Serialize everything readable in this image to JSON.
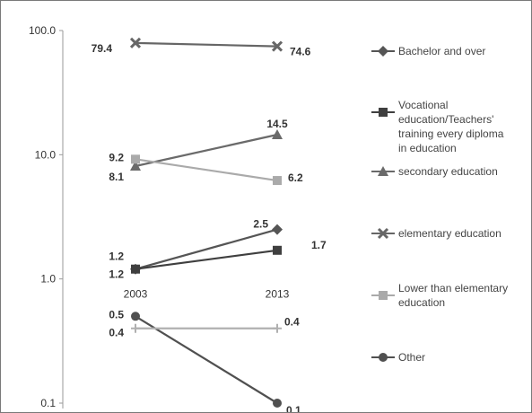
{
  "chart_data": {
    "type": "line",
    "title": "",
    "xlabel": "",
    "ylabel": "",
    "y_scale": "log",
    "ylim": [
      0.1,
      100
    ],
    "y_ticks": [
      "0.1",
      "1.0",
      "10.0",
      "100.0"
    ],
    "x_categories": [
      "2003",
      "2013"
    ],
    "legend_position": "right",
    "grid": false,
    "series": [
      {
        "name": "Bachelor and over",
        "marker": "diamond",
        "color": "#555555",
        "values": [
          1.2,
          2.5
        ],
        "labels": [
          "1.2",
          "2.5"
        ]
      },
      {
        "name": "Vocational education/Teachers' training every diploma in education",
        "marker": "square",
        "color": "#3f3f3f",
        "values": [
          1.2,
          1.7
        ],
        "labels": [
          "1.2",
          "1.7"
        ]
      },
      {
        "name": "secondary education",
        "marker": "triangle",
        "color": "#6a6a6a",
        "values": [
          8.1,
          14.5
        ],
        "labels": [
          "8.1",
          "14.5"
        ]
      },
      {
        "name": "elementary education",
        "marker": "x",
        "color": "#666666",
        "values": [
          79.4,
          74.6
        ],
        "labels": [
          "79.4",
          "74.6"
        ]
      },
      {
        "name": "Lower than elementary education",
        "marker": "square",
        "color": "#aaaaaa",
        "values": [
          9.2,
          6.2
        ],
        "labels": [
          "9.2",
          "6.2"
        ]
      },
      {
        "name": "Other",
        "marker": "circle",
        "color": "#505050",
        "values": [
          0.5,
          0.1
        ],
        "labels": [
          "0.5",
          "0.1"
        ]
      },
      {
        "name": "",
        "marker": "plus",
        "color": "#b0b0b0",
        "values": [
          0.4,
          0.4
        ],
        "labels": [
          "0.4",
          "0.4"
        ]
      }
    ]
  }
}
